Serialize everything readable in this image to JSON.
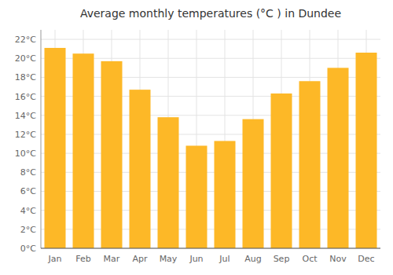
{
  "chart_data": {
    "type": "bar",
    "title": "Average monthly temperatures (°C ) in Dundee",
    "categories": [
      "Jan",
      "Feb",
      "Mar",
      "Apr",
      "May",
      "Jun",
      "Jul",
      "Aug",
      "Sep",
      "Oct",
      "Nov",
      "Dec"
    ],
    "values": [
      21.1,
      20.5,
      19.7,
      16.7,
      13.8,
      10.8,
      11.3,
      13.6,
      16.3,
      17.6,
      19.0,
      20.6
    ],
    "color": "#FDB827",
    "ylim": [
      0,
      23
    ],
    "yticks": [
      {
        "value": 0,
        "label": "0°C"
      },
      {
        "value": 2,
        "label": "2°C"
      },
      {
        "value": 4,
        "label": "4°C"
      },
      {
        "value": 6,
        "label": "6°C"
      },
      {
        "value": 8,
        "label": "8°C"
      },
      {
        "value": 10,
        "label": "10°C"
      },
      {
        "value": 12,
        "label": "12°C"
      },
      {
        "value": 14,
        "label": "14°C"
      },
      {
        "value": 16,
        "label": "16°C"
      },
      {
        "value": 18,
        "label": "18°C"
      },
      {
        "value": 20,
        "label": "20°C"
      },
      {
        "value": 22,
        "label": "22°C"
      }
    ],
    "grid": true
  }
}
